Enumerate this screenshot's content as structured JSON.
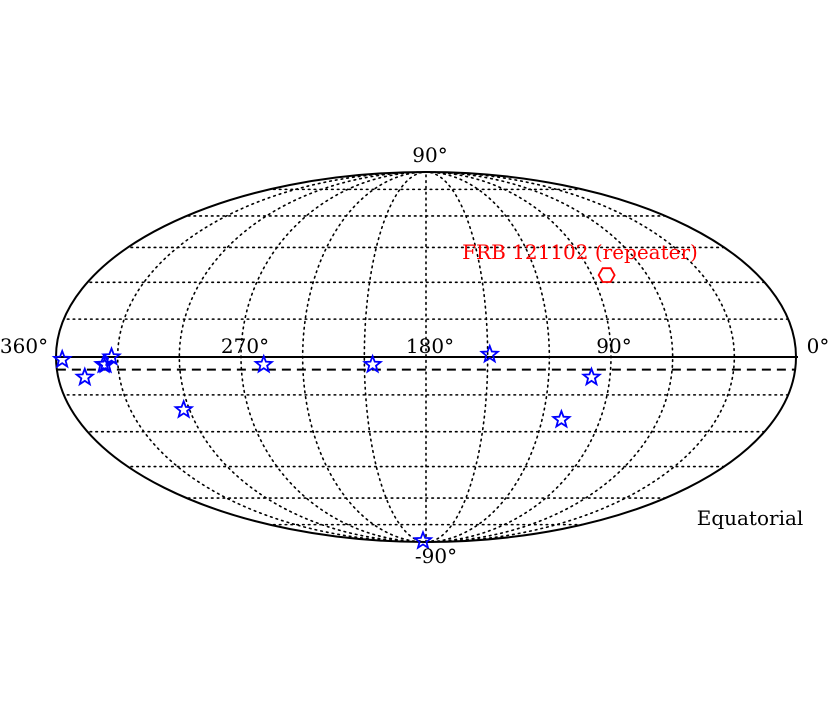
{
  "chart_data": {
    "type": "scatter",
    "projection": "mollweide",
    "coordinate_frame": "Equatorial",
    "x_axis": {
      "orientation": "reversed",
      "range": [
        360,
        0
      ],
      "tick_labels": [
        "360°",
        "270°",
        "180°",
        "90°",
        "0°"
      ],
      "tick_values": [
        360,
        270,
        180,
        90,
        0
      ]
    },
    "y_axis": {
      "range": [
        -90,
        90
      ],
      "tick_labels": [
        "90°",
        "-90°"
      ],
      "tick_values": [
        90,
        -90
      ]
    },
    "grid": true,
    "galactic_plane_line": {
      "style": "solid",
      "dec": 0
    },
    "dashed_line": {
      "style": "dashed",
      "dec": -5
    },
    "series": [
      {
        "marker": "star",
        "color": "#0000ff",
        "points": [
          {
            "x": 357,
            "y": -1
          },
          {
            "x": 333,
            "y": 0
          },
          {
            "x": 336,
            "y": -3
          },
          {
            "x": 337,
            "y": -3
          },
          {
            "x": 347,
            "y": -8
          },
          {
            "x": 303,
            "y": -21
          },
          {
            "x": 259,
            "y": -3
          },
          {
            "x": 206,
            "y": -3
          },
          {
            "x": 149,
            "y": 1
          },
          {
            "x": 99,
            "y": -8
          },
          {
            "x": 110,
            "y": -25
          },
          {
            "x": 193,
            "y": -88
          }
        ]
      },
      {
        "name": "FRB 121102 (repeater)",
        "marker": "hexagon",
        "color": "#ff0000",
        "points": [
          {
            "x": 82,
            "y": 33
          }
        ]
      }
    ],
    "annotation": "FRB 121102 (repeater)",
    "frame_label": "Equatorial"
  }
}
